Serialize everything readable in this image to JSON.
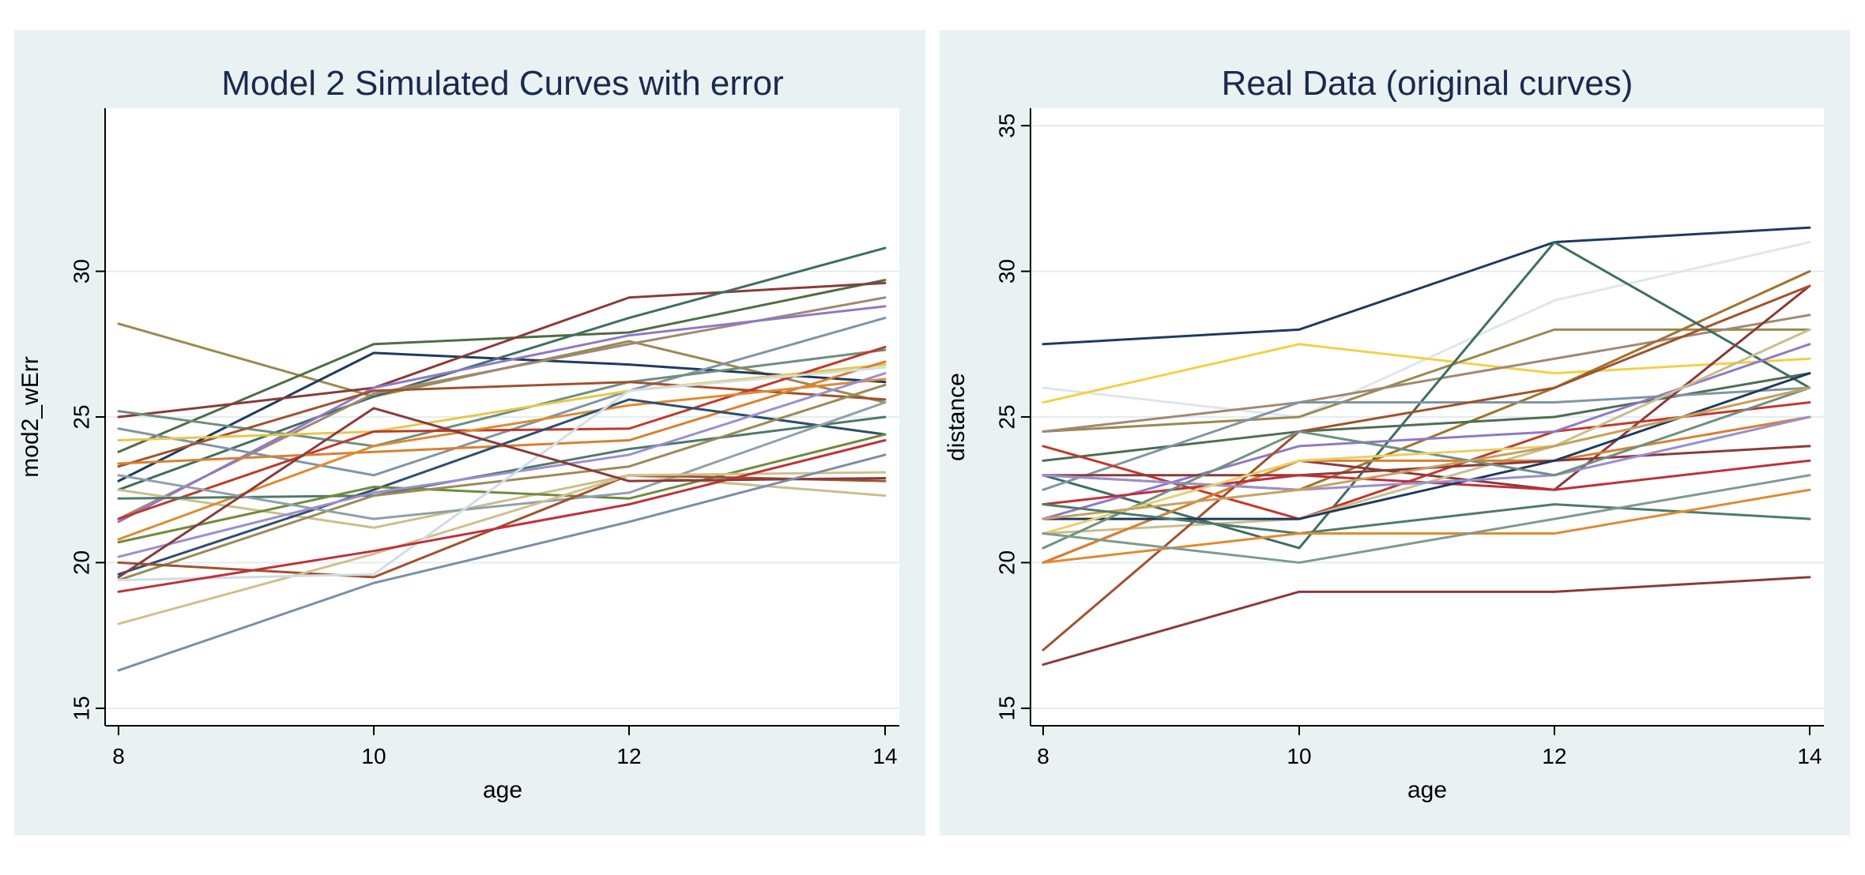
{
  "chart_data": [
    {
      "type": "line",
      "title": "Model 2 Simulated Curves with error",
      "xlabel": "age",
      "ylabel": "mod2_wErr",
      "x": [
        8,
        10,
        12,
        14
      ],
      "xticks": [
        "8",
        "10",
        "12",
        "14"
      ],
      "yticks": [
        "15",
        "20",
        "25",
        "30"
      ],
      "xlim": [
        7.9,
        14.1
      ],
      "ylim": [
        14.4,
        35.6
      ],
      "grid": true,
      "series": [
        {
          "color": "#9a8a50",
          "values": [
            28.2,
            25.7,
            27.6,
            25.5
          ]
        },
        {
          "color": "#4e6e42",
          "values": [
            23.8,
            27.5,
            27.9,
            29.7
          ]
        },
        {
          "color": "#1f3a5f",
          "values": [
            22.8,
            27.2,
            26.8,
            26.2
          ]
        },
        {
          "color": "#8b3a3a",
          "values": [
            25.0,
            26.0,
            29.1,
            29.6
          ]
        },
        {
          "color": "#3e6e62",
          "values": [
            22.5,
            25.7,
            28.4,
            30.8
          ]
        },
        {
          "color": "#a08872",
          "values": [
            21.5,
            25.8,
            27.5,
            29.1
          ]
        },
        {
          "color": "#9078c8",
          "values": [
            21.4,
            26.0,
            27.8,
            28.8
          ]
        },
        {
          "color": "#7f95a5",
          "values": [
            24.6,
            23.0,
            25.9,
            28.4
          ]
        },
        {
          "color": "#6e9080",
          "values": [
            25.2,
            24.0,
            26.2,
            27.3
          ]
        },
        {
          "color": "#a0522d",
          "values": [
            23.3,
            25.9,
            26.2,
            25.6
          ]
        },
        {
          "color": "#e6c84a",
          "values": [
            24.2,
            24.5,
            25.9,
            26.8
          ]
        },
        {
          "color": "#c8bf8c",
          "values": [
            22.5,
            21.2,
            23.0,
            22.3
          ]
        },
        {
          "color": "#c0392b",
          "values": [
            21.5,
            24.5,
            24.6,
            27.4
          ]
        },
        {
          "color": "#d98030",
          "values": [
            23.4,
            23.8,
            24.2,
            26.9
          ]
        },
        {
          "color": "#e08a2e",
          "values": [
            20.8,
            24.0,
            25.4,
            26.3
          ]
        },
        {
          "color": "#2e4f6e",
          "values": [
            19.6,
            22.5,
            25.6,
            24.4
          ]
        },
        {
          "color": "#4f7a6a",
          "values": [
            22.2,
            22.3,
            23.9,
            25.0
          ]
        },
        {
          "color": "#6f8a3a",
          "values": [
            20.7,
            22.6,
            22.2,
            24.4
          ]
        },
        {
          "color": "#9b8a5a",
          "values": [
            19.4,
            22.3,
            23.3,
            26.1
          ]
        },
        {
          "color": "#8fa0aa",
          "values": [
            23.0,
            21.5,
            22.4,
            25.5
          ]
        },
        {
          "color": "#9a8fd0",
          "values": [
            20.2,
            22.4,
            23.7,
            26.5
          ]
        },
        {
          "color": "#a0522d",
          "values": [
            20.0,
            19.5,
            23.0,
            22.8
          ]
        },
        {
          "color": "#d2bf8a",
          "values": [
            17.9,
            20.3,
            23.0,
            23.1
          ]
        },
        {
          "color": "#d0dde6",
          "values": [
            19.4,
            19.6,
            25.9,
            26.7
          ]
        },
        {
          "color": "#c0303a",
          "values": [
            19.0,
            20.4,
            22.0,
            24.2
          ]
        },
        {
          "color": "#8b3a3a",
          "values": [
            19.5,
            25.3,
            22.8,
            22.9
          ]
        },
        {
          "color": "#7a8ea8",
          "values": [
            16.3,
            19.3,
            21.4,
            23.7
          ]
        }
      ]
    },
    {
      "type": "line",
      "title": "Real Data (original curves)",
      "xlabel": "age",
      "ylabel": "distance",
      "x": [
        8,
        10,
        12,
        14
      ],
      "xticks": [
        "8",
        "10",
        "12",
        "14"
      ],
      "yticks": [
        "15",
        "20",
        "25",
        "30",
        "35"
      ],
      "xlim": [
        7.9,
        14.1
      ],
      "ylim": [
        14.4,
        35.6
      ],
      "grid": true,
      "series": [
        {
          "color": "#1f3a5f",
          "values": [
            27.5,
            28.0,
            31.0,
            31.5
          ]
        },
        {
          "color": "#dfe6ec",
          "values": [
            26.0,
            25.0,
            29.0,
            31.0
          ]
        },
        {
          "color": "#f2d045",
          "values": [
            25.5,
            27.5,
            26.5,
            27.0
          ]
        },
        {
          "color": "#9a8a50",
          "values": [
            24.5,
            25.0,
            28.0,
            28.0
          ]
        },
        {
          "color": "#a08872",
          "values": [
            24.5,
            25.5,
            27.0,
            28.5
          ]
        },
        {
          "color": "#a0722d",
          "values": [
            23.0,
            22.5,
            26.0,
            30.0
          ]
        },
        {
          "color": "#3e6e62",
          "values": [
            23.0,
            20.5,
            31.0,
            26.0
          ]
        },
        {
          "color": "#4e6e52",
          "values": [
            23.5,
            24.5,
            25.0,
            26.5
          ]
        },
        {
          "color": "#7f95a5",
          "values": [
            22.5,
            25.5,
            25.5,
            26.0
          ]
        },
        {
          "color": "#8b3a3a",
          "values": [
            20.0,
            23.5,
            22.5,
            29.5
          ]
        },
        {
          "color": "#c0392b",
          "values": [
            24.0,
            21.5,
            24.5,
            25.5
          ]
        },
        {
          "color": "#9078c8",
          "values": [
            21.5,
            24.0,
            24.5,
            27.5
          ]
        },
        {
          "color": "#c8bf8c",
          "values": [
            21.0,
            21.5,
            24.0,
            28.0
          ]
        },
        {
          "color": "#d98030",
          "values": [
            20.0,
            23.5,
            23.5,
            25.0
          ]
        },
        {
          "color": "#8b3a3a",
          "values": [
            23.0,
            23.0,
            23.5,
            24.0
          ]
        },
        {
          "color": "#a0522d",
          "values": [
            17.0,
            24.5,
            26.0,
            29.5
          ]
        },
        {
          "color": "#c0303a",
          "values": [
            22.0,
            23.0,
            22.5,
            23.5
          ]
        },
        {
          "color": "#1f3a5f",
          "values": [
            21.5,
            21.5,
            23.5,
            26.5
          ]
        },
        {
          "color": "#9a8fd0",
          "values": [
            23.0,
            22.5,
            23.0,
            25.0
          ]
        },
        {
          "color": "#6e9080",
          "values": [
            20.5,
            24.5,
            23.0,
            26.0
          ]
        },
        {
          "color": "#e6d06a",
          "values": [
            21.0,
            23.5,
            24.0,
            26.0
          ]
        },
        {
          "color": "#c8a060",
          "values": [
            21.5,
            22.5,
            24.0,
            26.0
          ]
        },
        {
          "color": "#4f7a6a",
          "values": [
            22.0,
            21.0,
            22.0,
            21.5
          ]
        },
        {
          "color": "#e08a2e",
          "values": [
            20.0,
            21.0,
            21.0,
            22.5
          ]
        },
        {
          "color": "#7f9a90",
          "values": [
            21.0,
            20.0,
            21.5,
            23.0
          ]
        },
        {
          "color": "#8b3a3a",
          "values": [
            16.5,
            19.0,
            19.0,
            19.5
          ]
        }
      ]
    }
  ]
}
